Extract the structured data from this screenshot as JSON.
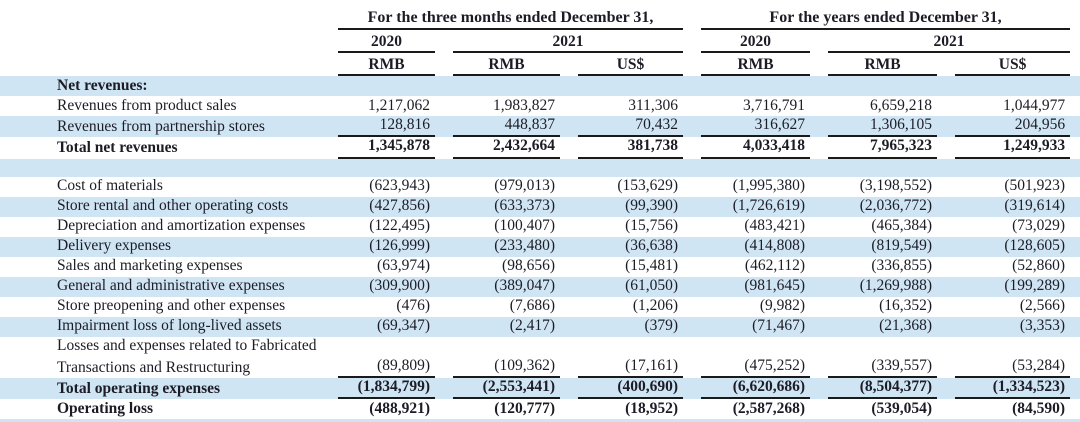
{
  "table": {
    "groups": [
      {
        "title": "For the three months ended December 31,",
        "years": [
          {
            "label": "2020"
          },
          {
            "label": "2021"
          }
        ]
      },
      {
        "title": "For the years ended December 31,",
        "years": [
          {
            "label": "2020"
          },
          {
            "label": "2021"
          }
        ]
      }
    ],
    "currency_headers": [
      "RMB",
      "RMB",
      "US$",
      "RMB",
      "RMB",
      "US$"
    ],
    "rows": [
      {
        "label": "Net revenues:",
        "bold": true,
        "bg": "blue",
        "values": []
      },
      {
        "label": "Revenues from product sales",
        "bg": "white",
        "values": [
          "1,217,062",
          "1,983,827",
          "311,306",
          "3,716,791",
          "6,659,218",
          "1,044,977"
        ]
      },
      {
        "label": "Revenues from partnership stores",
        "bg": "blue",
        "rule_below": true,
        "values": [
          "128,816",
          "448,837",
          "70,432",
          "316,627",
          "1,306,105",
          "204,956"
        ]
      },
      {
        "label": "Total net revenues",
        "bold": true,
        "bg": "white",
        "rule_below": true,
        "values": [
          "1,345,878",
          "2,432,664",
          "381,738",
          "4,033,418",
          "7,965,323",
          "1,249,933"
        ]
      },
      {
        "spacer": true,
        "bg": "blue",
        "values": []
      },
      {
        "label": "Cost of materials",
        "bg": "white",
        "values": [
          "(623,943)",
          "(979,013)",
          "(153,629)",
          "(1,995,380)",
          "(3,198,552)",
          "(501,923)"
        ]
      },
      {
        "label": "Store rental and other operating costs",
        "bg": "blue",
        "values": [
          "(427,856)",
          "(633,373)",
          "(99,390)",
          "(1,726,619)",
          "(2,036,772)",
          "(319,614)"
        ]
      },
      {
        "label": "Depreciation and amortization expenses",
        "bg": "white",
        "values": [
          "(122,495)",
          "(100,407)",
          "(15,756)",
          "(483,421)",
          "(465,384)",
          "(73,029)"
        ]
      },
      {
        "label": "Delivery expenses",
        "bg": "blue",
        "values": [
          "(126,999)",
          "(233,480)",
          "(36,638)",
          "(414,808)",
          "(819,549)",
          "(128,605)"
        ]
      },
      {
        "label": "Sales and marketing expenses",
        "bg": "white",
        "values": [
          "(63,974)",
          "(98,656)",
          "(15,481)",
          "(462,112)",
          "(336,855)",
          "(52,860)"
        ]
      },
      {
        "label": "General and administrative expenses",
        "bg": "blue",
        "values": [
          "(309,900)",
          "(389,047)",
          "(61,050)",
          "(981,645)",
          "(1,269,988)",
          "(199,289)"
        ]
      },
      {
        "label": "Store preopening and other expenses",
        "bg": "white",
        "values": [
          "(476)",
          "(7,686)",
          "(1,206)",
          "(9,982)",
          "(16,352)",
          "(2,566)"
        ]
      },
      {
        "label": "Impairment loss of long-lived assets",
        "bg": "blue",
        "values": [
          "(69,347)",
          "(2,417)",
          "(379)",
          "(71,467)",
          "(21,368)",
          "(3,353)"
        ]
      },
      {
        "label": "Losses and expenses related to Fabricated",
        "bg": "white",
        "values": []
      },
      {
        "label": "Transactions and Restructuring",
        "bg": "white",
        "rule_below": true,
        "values": [
          "(89,809)",
          "(109,362)",
          "(17,161)",
          "(475,252)",
          "(339,557)",
          "(53,284)"
        ]
      },
      {
        "label": "Total operating expenses",
        "bold": true,
        "bg": "blue",
        "rule_below": true,
        "values": [
          "(1,834,799)",
          "(2,553,441)",
          "(400,690)",
          "(6,620,686)",
          "(8,504,377)",
          "(1,334,523)"
        ]
      },
      {
        "label": "Operating loss",
        "bold": true,
        "bg": "white",
        "values": [
          "(488,921)",
          "(120,777)",
          "(18,952)",
          "(2,587,268)",
          "(539,054)",
          "(84,590)"
        ]
      },
      {
        "strip": true,
        "bg": "blue",
        "values": []
      }
    ],
    "colors": {
      "stripe": "#cfe5f3",
      "text": "#1c1c26",
      "rule": "#1a1a1a"
    }
  }
}
